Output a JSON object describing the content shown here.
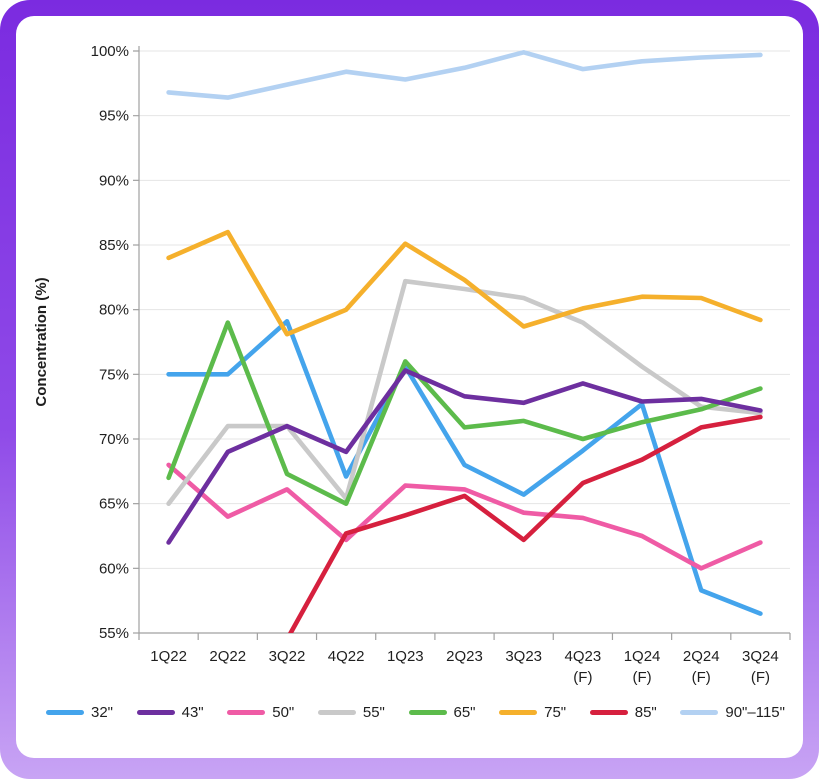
{
  "frame": {
    "border_gradient_top": "#7b2be0",
    "border_gradient_bottom": "#c8a4f4",
    "card_background": "#ffffff"
  },
  "chart_data": {
    "type": "line",
    "title": "",
    "xlabel": "",
    "ylabel": "Concentration (%)",
    "ylim": [
      55,
      100
    ],
    "ytick_step": 5,
    "yticks": [
      "55%",
      "60%",
      "65%",
      "70%",
      "75%",
      "80%",
      "85%",
      "90%",
      "95%",
      "100%"
    ],
    "grid": true,
    "legend_position": "bottom",
    "gridline_color": "#e4e4e4",
    "axis_color": "#a0a0a0",
    "categories": [
      "1Q22",
      "2Q22",
      "3Q22",
      "4Q22",
      "1Q23",
      "2Q23",
      "3Q23",
      "4Q23",
      "1Q24",
      "2Q24",
      "3Q24"
    ],
    "forecast_suffix": "(F)",
    "forecast_indices": [
      7,
      8,
      9,
      10
    ],
    "series": [
      {
        "name": "32\"",
        "color": "#44a4ec",
        "values": [
          75,
          75,
          79.1,
          67.1,
          75.6,
          68,
          65.7,
          69.1,
          72.7,
          58.3,
          56.5
        ]
      },
      {
        "name": "43\"",
        "color": "#6d2f9f",
        "values": [
          62,
          69,
          71,
          69,
          75.3,
          73.3,
          72.8,
          74.3,
          72.9,
          73.1,
          72.2
        ]
      },
      {
        "name": "50\"",
        "color": "#ef5ba5",
        "values": [
          68,
          64,
          66.1,
          62.2,
          66.4,
          66.1,
          64.3,
          63.9,
          62.5,
          60,
          62
        ]
      },
      {
        "name": "55\"",
        "color": "#c9c9c9",
        "values": [
          65,
          71,
          71,
          65.4,
          82.2,
          81.6,
          80.9,
          79,
          75.6,
          72.5,
          72
        ]
      },
      {
        "name": "65\"",
        "color": "#5cbb4b",
        "values": [
          67,
          79,
          67.3,
          65,
          76,
          70.9,
          71.4,
          70,
          71.3,
          72.3,
          73.9
        ]
      },
      {
        "name": "75\"",
        "color": "#f5b02c",
        "values": [
          84,
          86,
          78.1,
          80,
          85.1,
          82.3,
          78.7,
          80.1,
          81,
          80.9,
          79.2
        ]
      },
      {
        "name": "85\"",
        "color": "#d6203e",
        "values": [
          null,
          null,
          54.5,
          62.7,
          64.1,
          65.6,
          62.2,
          66.6,
          68.4,
          70.9,
          71.7
        ]
      },
      {
        "name": "90\"–115\"",
        "color": "#b3d1f2",
        "values": [
          96.8,
          96.4,
          97.4,
          98.4,
          97.8,
          98.7,
          99.9,
          98.6,
          99.2,
          99.5,
          99.7
        ]
      }
    ],
    "draw_order": [
      0,
      2,
      3,
      4,
      6,
      1,
      5,
      7
    ]
  }
}
